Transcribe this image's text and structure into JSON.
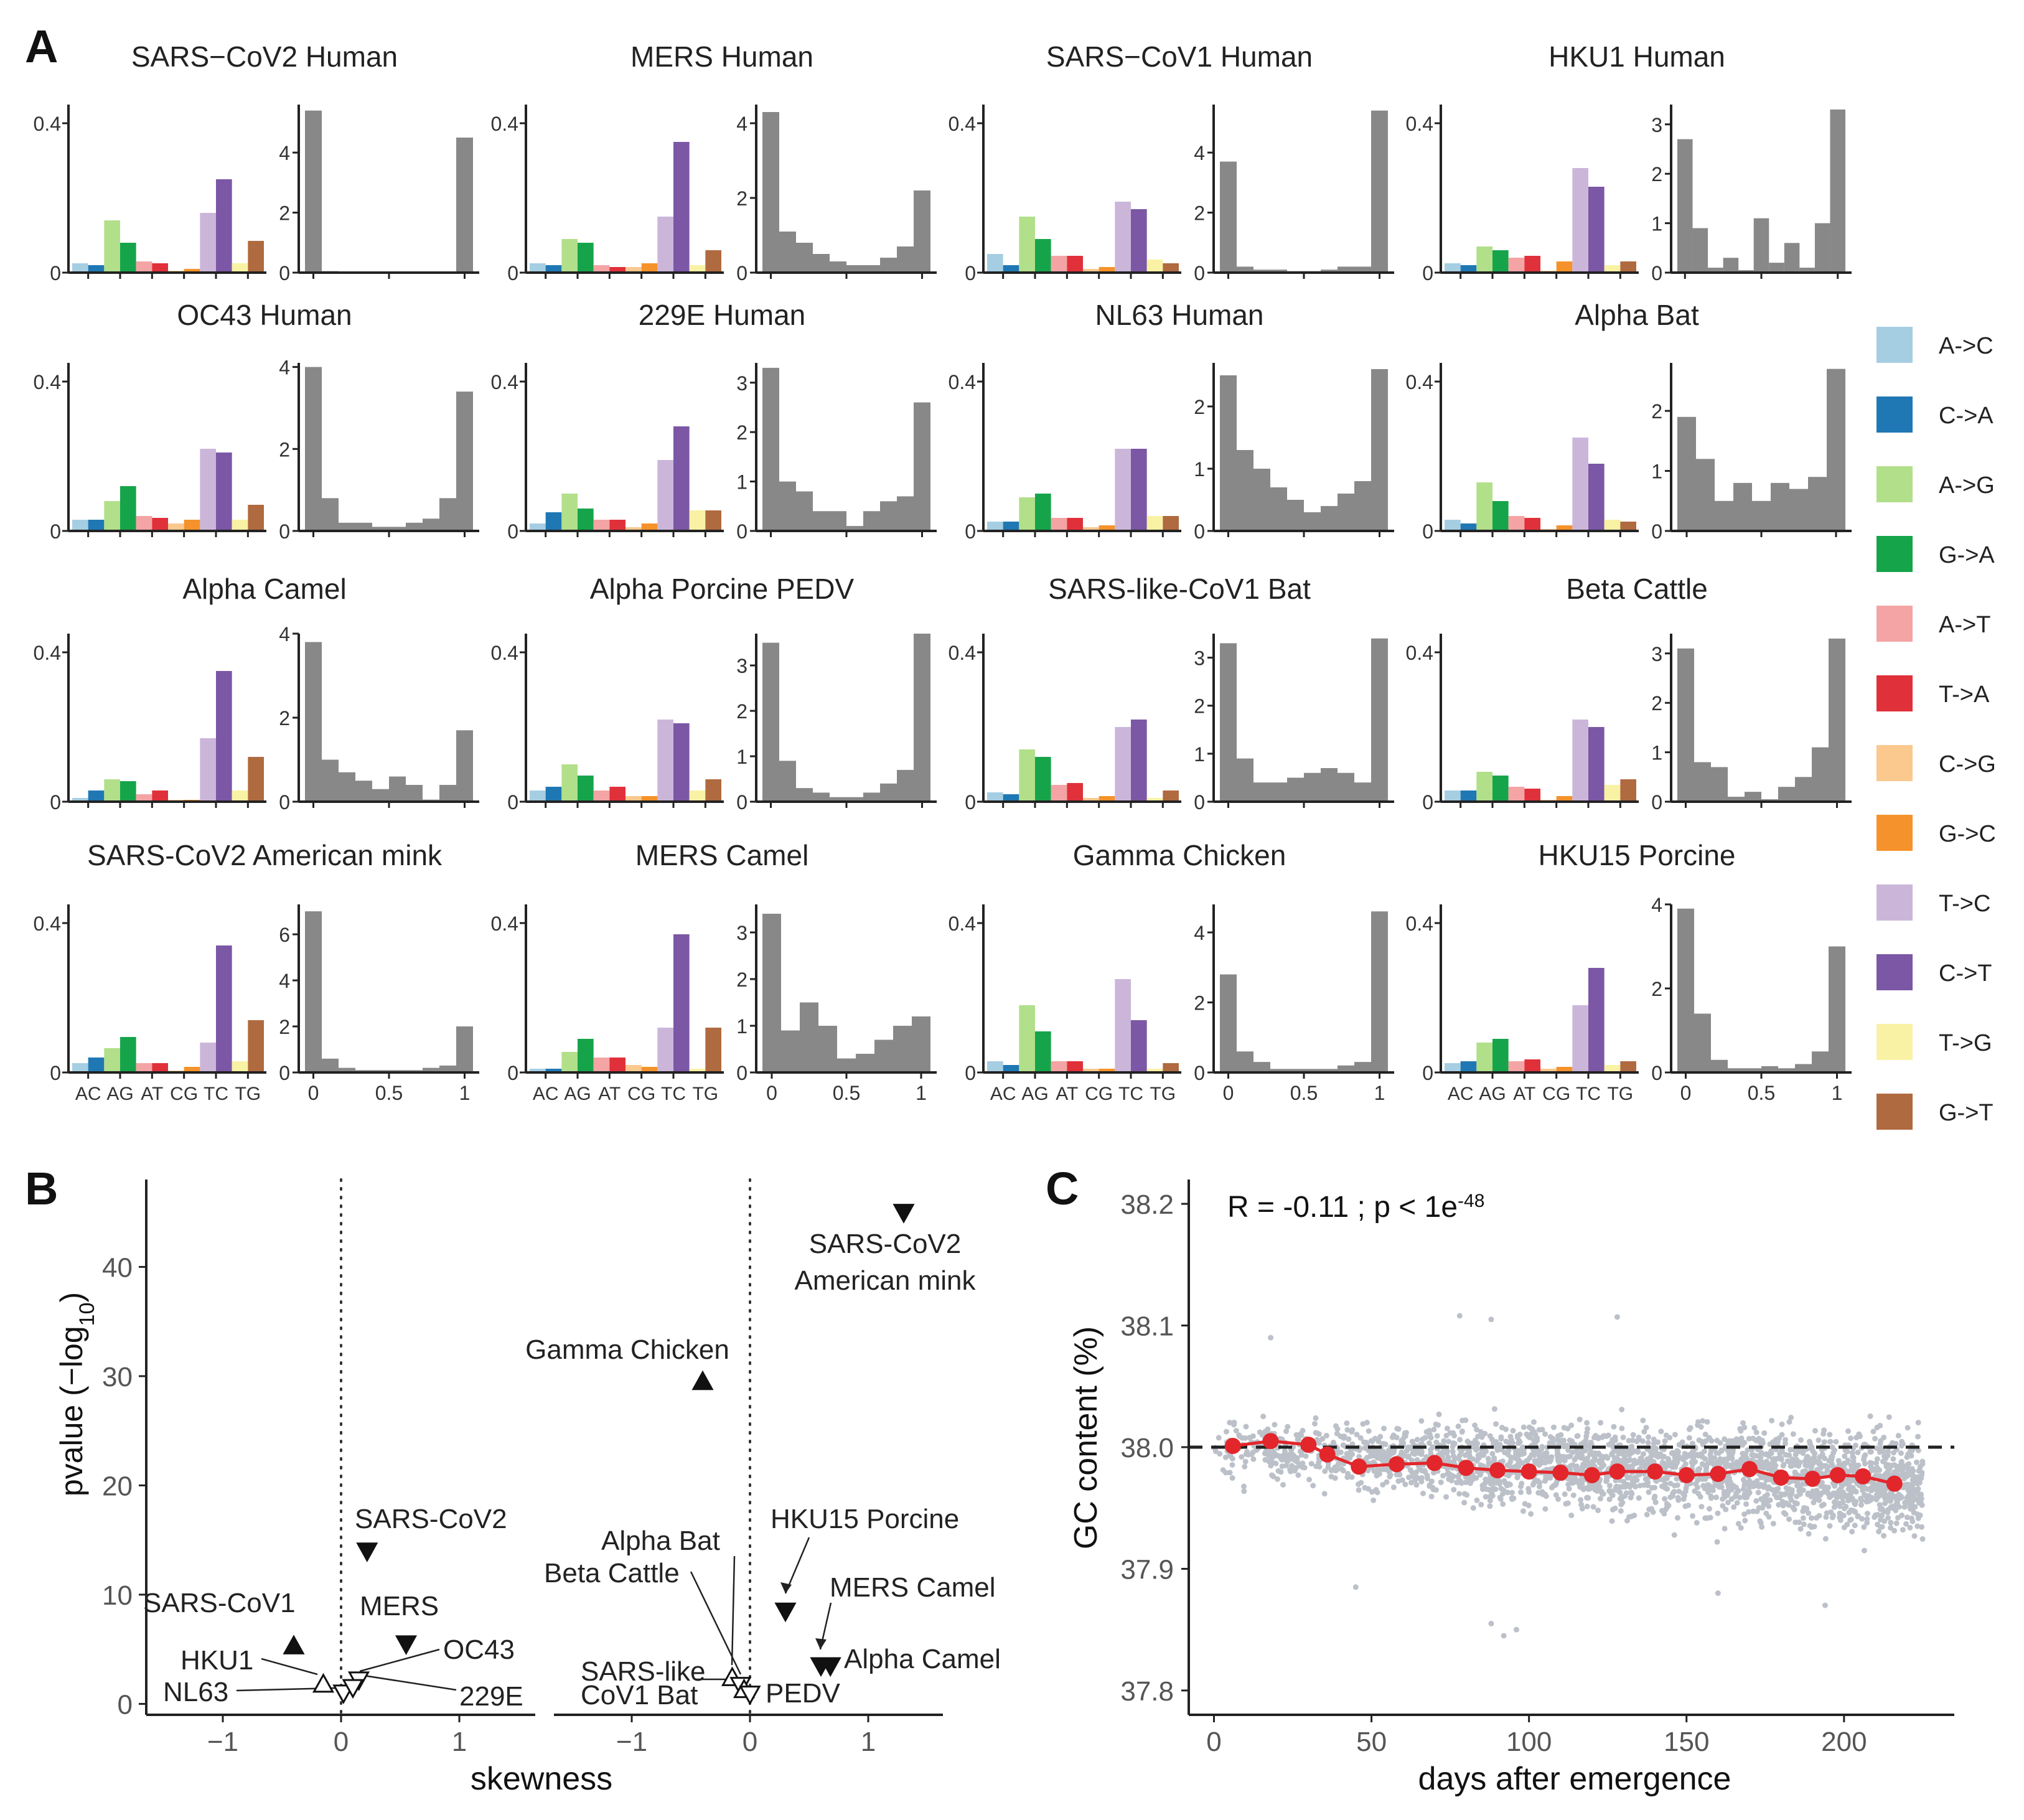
{
  "labels": {
    "A": "A",
    "B": "B",
    "C": "C"
  },
  "colors": {
    "hist": "#888888",
    "axis": "#222222",
    "scatter": "#bcc1c9",
    "trend": "#e3262b",
    "dashed": "#222222",
    "marker": "#111111"
  },
  "legend": [
    {
      "label": "A->C",
      "color": "#a6cee3"
    },
    {
      "label": "C->A",
      "color": "#1f78b4"
    },
    {
      "label": "A->G",
      "color": "#b2df8a"
    },
    {
      "label": "G->A",
      "color": "#16a44a"
    },
    {
      "label": "A->T",
      "color": "#f4a4a4"
    },
    {
      "label": "T->A",
      "color": "#e0303a"
    },
    {
      "label": "C->G",
      "color": "#fbc88e"
    },
    {
      "label": "G->C",
      "color": "#f5922b"
    },
    {
      "label": "T->C",
      "color": "#cbb6da"
    },
    {
      "label": "C->T",
      "color": "#7b57a5"
    },
    {
      "label": "T->G",
      "color": "#f9f2a4"
    },
    {
      "label": "G->T",
      "color": "#b06a3f"
    }
  ],
  "chart_data": [
    {
      "type": "bar",
      "panel": "A",
      "bar_categories": [
        "AC",
        "AG",
        "AT",
        "CG",
        "TC",
        "TG"
      ],
      "bar_ylim": [
        0,
        0.45
      ],
      "bar_yticks": [
        "0",
        "0.4"
      ],
      "hist_xticks": [
        "0",
        "0.5",
        "1"
      ],
      "panels": [
        {
          "title": "SARS−CoV2 Human",
          "bars": [
            0.025,
            0.02,
            0.14,
            0.08,
            0.03,
            0.025,
            0.005,
            0.01,
            0.16,
            0.25,
            0.025,
            0.085
          ],
          "hist": [
            5.4,
            0.05,
            0.02,
            0.01,
            0.01,
            0.01,
            0.01,
            0.01,
            0.01,
            4.5
          ],
          "hymax": 5.6,
          "hticks": [
            0,
            2,
            4
          ]
        },
        {
          "title": "MERS Human",
          "bars": [
            0.025,
            0.02,
            0.09,
            0.08,
            0.02,
            0.015,
            0.015,
            0.025,
            0.15,
            0.35,
            0.02,
            0.06
          ],
          "hist": [
            4.3,
            1.1,
            0.8,
            0.5,
            0.3,
            0.2,
            0.2,
            0.4,
            0.7,
            2.2
          ],
          "hymax": 4.5,
          "hticks": [
            0,
            2,
            4
          ]
        },
        {
          "title": "SARS−CoV1 Human",
          "bars": [
            0.05,
            0.02,
            0.15,
            0.09,
            0.045,
            0.045,
            0.01,
            0.015,
            0.19,
            0.17,
            0.035,
            0.025
          ],
          "hist": [
            3.7,
            0.2,
            0.1,
            0.1,
            0.05,
            0.05,
            0.1,
            0.2,
            0.2,
            5.4
          ],
          "hymax": 5.6,
          "hticks": [
            0,
            2,
            4
          ]
        },
        {
          "title": "HKU1 Human",
          "bars": [
            0.025,
            0.02,
            0.07,
            0.06,
            0.04,
            0.045,
            0.005,
            0.03,
            0.28,
            0.23,
            0.02,
            0.03
          ],
          "hist": [
            2.7,
            0.9,
            0.1,
            0.3,
            0.05,
            1.1,
            0.2,
            0.6,
            0.1,
            1.0,
            3.3
          ],
          "hymax": 3.4,
          "hticks": [
            0,
            1,
            2,
            3
          ]
        },
        {
          "title": "OC43 Human",
          "bars": [
            0.03,
            0.03,
            0.08,
            0.12,
            0.04,
            0.035,
            0.02,
            0.03,
            0.22,
            0.21,
            0.03,
            0.07
          ],
          "hist": [
            4.0,
            0.8,
            0.2,
            0.2,
            0.1,
            0.1,
            0.2,
            0.3,
            0.8,
            3.4
          ],
          "hymax": 4.1,
          "hticks": [
            0,
            2,
            4
          ]
        },
        {
          "title": "229E Human",
          "bars": [
            0.02,
            0.05,
            0.1,
            0.06,
            0.03,
            0.03,
            0.01,
            0.02,
            0.19,
            0.28,
            0.055,
            0.055
          ],
          "hist": [
            3.3,
            1.0,
            0.8,
            0.4,
            0.4,
            0.1,
            0.4,
            0.6,
            0.7,
            2.6
          ],
          "hymax": 3.4,
          "hticks": [
            0,
            1,
            2,
            3
          ]
        },
        {
          "title": "NL63 Human",
          "bars": [
            0.025,
            0.025,
            0.09,
            0.1,
            0.035,
            0.035,
            0.01,
            0.015,
            0.22,
            0.22,
            0.04,
            0.04
          ],
          "hist": [
            2.5,
            1.3,
            1.0,
            0.7,
            0.5,
            0.3,
            0.4,
            0.6,
            0.8,
            2.6
          ],
          "hymax": 2.7,
          "hticks": [
            0,
            1,
            2
          ]
        },
        {
          "title": "Alpha Bat",
          "bars": [
            0.03,
            0.02,
            0.13,
            0.08,
            0.04,
            0.035,
            0.005,
            0.015,
            0.25,
            0.18,
            0.03,
            0.025
          ],
          "hist": [
            1.9,
            1.2,
            0.5,
            0.8,
            0.5,
            0.8,
            0.7,
            0.9,
            2.7
          ],
          "hymax": 2.8,
          "hticks": [
            0,
            1,
            2
          ]
        },
        {
          "title": "Alpha Camel",
          "bars": [
            0.01,
            0.03,
            0.06,
            0.055,
            0.02,
            0.03,
            0.005,
            0.005,
            0.17,
            0.35,
            0.03,
            0.12
          ],
          "hist": [
            3.8,
            1.0,
            0.7,
            0.5,
            0.3,
            0.6,
            0.4,
            0.05,
            0.4,
            1.7
          ],
          "hymax": 4.0,
          "hticks": [
            0,
            2,
            4
          ]
        },
        {
          "title": "Alpha Porcine PEDV",
          "bars": [
            0.03,
            0.04,
            0.1,
            0.07,
            0.03,
            0.04,
            0.015,
            0.015,
            0.22,
            0.21,
            0.03,
            0.06
          ],
          "hist": [
            3.5,
            0.9,
            0.3,
            0.2,
            0.1,
            0.1,
            0.2,
            0.4,
            0.7,
            3.7
          ],
          "hymax": 3.7,
          "hticks": [
            0,
            1,
            2,
            3
          ]
        },
        {
          "title": "SARS-like-CoV1 Bat",
          "bars": [
            0.025,
            0.02,
            0.14,
            0.12,
            0.045,
            0.05,
            0.01,
            0.015,
            0.2,
            0.22,
            0.01,
            0.03
          ],
          "hist": [
            3.3,
            0.9,
            0.4,
            0.4,
            0.5,
            0.6,
            0.7,
            0.6,
            0.4,
            3.4
          ],
          "hymax": 3.5,
          "hticks": [
            0,
            1,
            2,
            3
          ]
        },
        {
          "title": "Beta Cattle",
          "bars": [
            0.03,
            0.03,
            0.08,
            0.07,
            0.04,
            0.035,
            0.005,
            0.015,
            0.22,
            0.2,
            0.045,
            0.06
          ],
          "hist": [
            3.1,
            0.8,
            0.7,
            0.1,
            0.2,
            0.05,
            0.3,
            0.5,
            1.1,
            3.3
          ],
          "hymax": 3.4,
          "hticks": [
            0,
            1,
            2,
            3
          ]
        },
        {
          "title": "SARS-CoV2 American mink",
          "bars": [
            0.025,
            0.04,
            0.065,
            0.095,
            0.025,
            0.025,
            0.005,
            0.015,
            0.08,
            0.34,
            0.03,
            0.14
          ],
          "hist": [
            7.0,
            0.6,
            0.2,
            0.1,
            0.1,
            0.1,
            0.1,
            0.2,
            0.3,
            2.0
          ],
          "hymax": 7.3,
          "hticks": [
            0,
            2,
            4,
            6
          ]
        },
        {
          "title": "MERS Camel",
          "bars": [
            0.01,
            0.01,
            0.055,
            0.09,
            0.04,
            0.04,
            0.02,
            0.015,
            0.12,
            0.37,
            0.01,
            0.12
          ],
          "hist": [
            3.4,
            0.9,
            1.5,
            1.0,
            0.3,
            0.4,
            0.7,
            1.0,
            1.2
          ],
          "hymax": 3.6,
          "hticks": [
            0,
            1,
            2,
            3
          ]
        },
        {
          "title": "Gamma Chicken",
          "bars": [
            0.03,
            0.02,
            0.18,
            0.11,
            0.03,
            0.03,
            0.01,
            0.01,
            0.25,
            0.14,
            0.01,
            0.025
          ],
          "hist": [
            2.8,
            0.6,
            0.3,
            0.1,
            0.1,
            0.1,
            0.1,
            0.2,
            0.3,
            4.6
          ],
          "hymax": 4.8,
          "hticks": [
            0,
            2,
            4
          ]
        },
        {
          "title": "HKU15 Porcine",
          "bars": [
            0.025,
            0.03,
            0.08,
            0.09,
            0.03,
            0.035,
            0.01,
            0.015,
            0.18,
            0.28,
            0.02,
            0.03
          ],
          "hist": [
            3.9,
            1.4,
            0.3,
            0.1,
            0.1,
            0.15,
            0.1,
            0.2,
            0.5,
            3.0
          ],
          "hymax": 4.0,
          "hticks": [
            0,
            2,
            4
          ]
        }
      ]
    },
    {
      "type": "scatter",
      "panel": "B",
      "xlabel": "skewness",
      "ylabel": "pvalue (−log",
      "ylabel_sub": "10",
      "ylabel_end": ")",
      "ylim": [
        -1,
        48
      ],
      "yticks": [
        0,
        10,
        20,
        30,
        40
      ],
      "xticks": [
        "−1",
        "0",
        "1"
      ],
      "left": {
        "xlim": [
          -1.6,
          1.6
        ],
        "points": [
          {
            "label": "SARS-CoV2",
            "x": 0.22,
            "y": 14,
            "shape": "down",
            "filled": true
          },
          {
            "label": "SARS-CoV1",
            "x": -0.4,
            "y": 5.3,
            "shape": "up",
            "filled": true
          },
          {
            "label": "MERS",
            "x": 0.55,
            "y": 5.5,
            "shape": "down",
            "filled": true
          },
          {
            "label": "HKU1",
            "x": -0.15,
            "y": 1.8,
            "shape": "up",
            "filled": false
          },
          {
            "label": "NL63",
            "x": 0.02,
            "y": 1.0,
            "shape": "down",
            "filled": false
          },
          {
            "label": "OC43",
            "x": 0.15,
            "y": 2.2,
            "shape": "down",
            "filled": false
          },
          {
            "label": "229E",
            "x": 0.1,
            "y": 1.5,
            "shape": "down",
            "filled": false
          }
        ]
      },
      "right": {
        "xlim": [
          -1.6,
          1.6
        ],
        "points": [
          {
            "label": "SARS-CoV2 American mink",
            "x": 1.3,
            "y": 45,
            "shape": "down",
            "filled": true
          },
          {
            "label": "Gamma Chicken",
            "x": -0.4,
            "y": 29.5,
            "shape": "up",
            "filled": true
          },
          {
            "label": "HKU15 Porcine",
            "x": 0.3,
            "y": 8.5,
            "shape": "down",
            "filled": true
          },
          {
            "label": "MERS Camel",
            "x": 0.6,
            "y": 3.5,
            "shape": "down",
            "filled": true
          },
          {
            "label": "Alpha Camel",
            "x": 0.68,
            "y": 3.5,
            "shape": "down",
            "filled": true
          },
          {
            "label": "Alpha Bat",
            "x": -0.15,
            "y": 2.4,
            "shape": "up",
            "filled": false
          },
          {
            "label": "Beta Cattle",
            "x": -0.08,
            "y": 1.7,
            "shape": "down",
            "filled": false
          },
          {
            "label": "SARS-like CoV1 Bat",
            "x": -0.05,
            "y": 1.3,
            "shape": "up",
            "filled": false
          },
          {
            "label": "PEDV",
            "x": 0.0,
            "y": 0.9,
            "shape": "down",
            "filled": false
          }
        ]
      },
      "labels": {
        "sars_cov2": "SARS-CoV2",
        "sars_cov1": "SARS-CoV1",
        "mers": "MERS",
        "hku1": "HKU1",
        "nl63": "NL63",
        "oc43": "OC43",
        "e229": "229E",
        "mink_1": "SARS-CoV2",
        "mink_2": "American mink",
        "gamma": "Gamma Chicken",
        "alpha_bat": "Alpha Bat",
        "beta_cattle": "Beta Cattle",
        "hku15": "HKU15 Porcine",
        "mers_camel": "MERS Camel",
        "alpha_camel": "Alpha Camel",
        "sarslike_1": "SARS-like",
        "sarslike_2": "CoV1 Bat",
        "pedv": "PEDV"
      }
    },
    {
      "type": "line",
      "panel": "C",
      "annotation": "R = -0.11 ; p < 1e",
      "annotation_exp": "-48",
      "xlabel": "days after emergence",
      "ylabel": "GC content (%)",
      "xlim": [
        -8,
        235
      ],
      "ylim": [
        37.78,
        38.22
      ],
      "xticks": [
        0,
        50,
        100,
        150,
        200
      ],
      "yticks": [
        "37.8",
        "37.9",
        "38.0",
        "38.1",
        "38.2"
      ],
      "hline": 38.0,
      "x": [
        6,
        18,
        30,
        36,
        46,
        58,
        70,
        80,
        90,
        100,
        110,
        120,
        128,
        140,
        150,
        160,
        170,
        180,
        190,
        198,
        206,
        216
      ],
      "y": [
        38.001,
        38.005,
        38.002,
        37.994,
        37.984,
        37.986,
        37.987,
        37.983,
        37.981,
        37.98,
        37.979,
        37.977,
        37.98,
        37.98,
        37.977,
        37.978,
        37.982,
        37.975,
        37.974,
        37.977,
        37.976,
        37.97
      ]
    }
  ]
}
